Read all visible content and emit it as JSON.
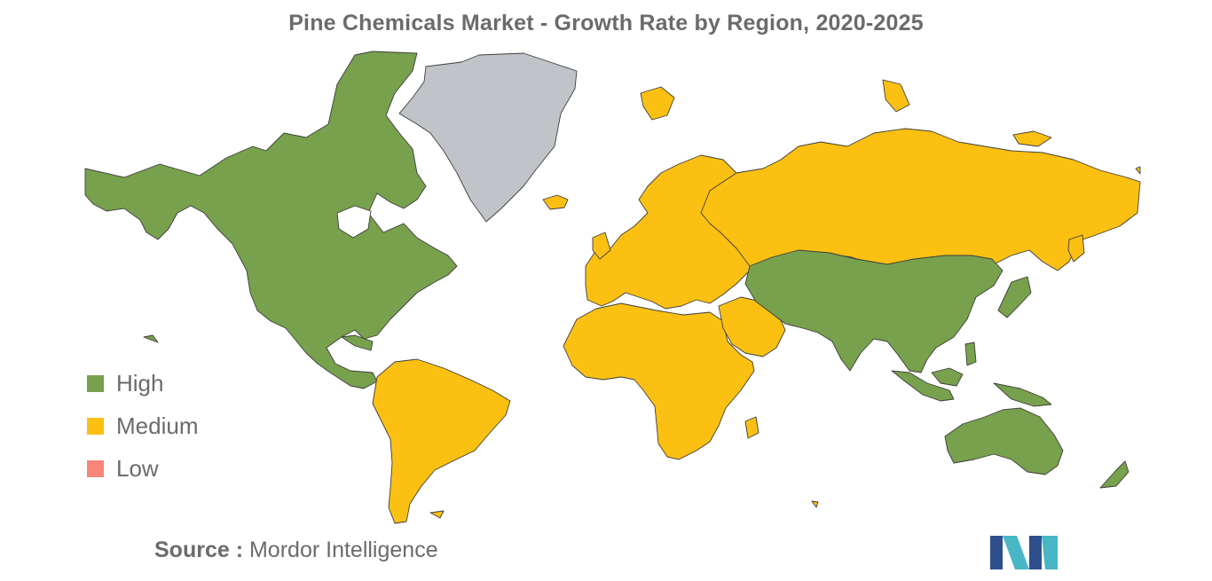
{
  "title": "Pine Chemicals Market - Growth Rate by Region, 2020-2025",
  "legend": [
    {
      "label": "High",
      "color": "#77a14c"
    },
    {
      "label": "Medium",
      "color": "#fbc011"
    },
    {
      "label": "Low",
      "color": "#f8847a"
    }
  ],
  "no_data_color": "#c0c3c8",
  "regions": {
    "north_america": "High",
    "south_america": "Medium",
    "europe": "Medium",
    "russia": "Medium",
    "africa": "Medium",
    "middle_east": "Medium",
    "asia_pacific": "High",
    "australia": "High",
    "greenland": "No data"
  },
  "source": {
    "prefix": "Source :",
    "text": "Mordor Intelligence"
  },
  "logo_colors": [
    "#2e4e8e",
    "#48b6c4"
  ]
}
